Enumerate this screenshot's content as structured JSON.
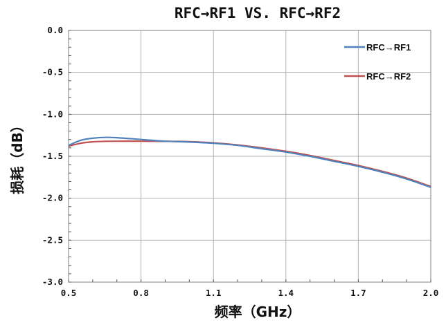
{
  "chart_data": {
    "type": "line",
    "title": "RFC→RF1 VS. RFC→RF2",
    "xlabel": "频率（GHz）",
    "ylabel": "损耗（dB）",
    "xlim": [
      0.5,
      2.0
    ],
    "ylim": [
      -3.0,
      0.0
    ],
    "x_ticks": [
      "0.5",
      "0.8",
      "1.1",
      "1.4",
      "1.7",
      "2.0"
    ],
    "y_ticks": [
      "0.0",
      "-0.5",
      "-1.0",
      "-1.5",
      "-2.0",
      "-2.5",
      "-3.0"
    ],
    "grid": true,
    "legend_position": "top-right",
    "series": [
      {
        "name": "RFC→RF1",
        "color": "#4f81bd",
        "x": [
          0.5,
          0.55,
          0.6,
          0.65,
          0.7,
          0.8,
          0.9,
          1.0,
          1.1,
          1.2,
          1.3,
          1.4,
          1.5,
          1.6,
          1.7,
          1.8,
          1.9,
          2.0
        ],
        "y": [
          -1.37,
          -1.31,
          -1.285,
          -1.275,
          -1.278,
          -1.3,
          -1.32,
          -1.33,
          -1.345,
          -1.37,
          -1.41,
          -1.45,
          -1.5,
          -1.56,
          -1.62,
          -1.69,
          -1.77,
          -1.87
        ]
      },
      {
        "name": "RFC→RF2",
        "color": "#c0504d",
        "x": [
          0.5,
          0.55,
          0.6,
          0.65,
          0.7,
          0.8,
          0.9,
          1.0,
          1.1,
          1.2,
          1.3,
          1.4,
          1.5,
          1.6,
          1.7,
          1.8,
          1.9,
          2.0
        ],
        "y": [
          -1.38,
          -1.345,
          -1.328,
          -1.322,
          -1.32,
          -1.32,
          -1.322,
          -1.325,
          -1.34,
          -1.365,
          -1.4,
          -1.44,
          -1.49,
          -1.55,
          -1.61,
          -1.68,
          -1.76,
          -1.86
        ]
      }
    ]
  }
}
